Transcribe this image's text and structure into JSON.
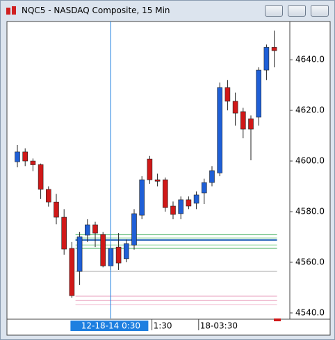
{
  "window_title": "NQC5 - NASDAQ Composite, 15 Min",
  "chart_data": {
    "type": "candlestick",
    "categories": [
      null,
      null,
      null,
      null,
      null,
      null,
      null,
      null,
      null,
      null,
      null,
      null,
      "12-18-14  0:30",
      null,
      null,
      null,
      null,
      null,
      "1:30",
      null,
      null,
      null,
      null,
      null,
      "18-03:30",
      null,
      null,
      null,
      null,
      null,
      null,
      null,
      null,
      null
    ],
    "crosshair_category": 12,
    "series": [
      {
        "up_color": "#1f5fd6",
        "down_color": "#d01818",
        "open": [
          4599.7,
          4603.6,
          4600.0,
          4598.6,
          4588.8,
          4583.8,
          4577.8,
          4565.5,
          4556.4,
          4570.7,
          4574.8,
          4571.0,
          4558.6,
          4566.0,
          4561.4,
          4566.8,
          4578.6,
          4600.8,
          4592.6,
          4592.6,
          4582.2,
          4579.2,
          4584.7,
          4583.3,
          4587.4,
          4591.5,
          4595.3,
          4629.0,
          4623.6,
          4619.5,
          4616.7,
          4617.3,
          4635.9,
          4644.9
        ],
        "high": [
          4606.3,
          4605.0,
          4601.0,
          4599.0,
          4590.0,
          4587.0,
          4581.0,
          4568.0,
          4572.0,
          4577.0,
          4576.0,
          4572.0,
          4567.0,
          4571.5,
          4569.0,
          4581.0,
          4594.0,
          4602.0,
          4595.0,
          4593.5,
          4584.0,
          4586.0,
          4586.0,
          4588.0,
          4593.0,
          4598.0,
          4631.0,
          4632.0,
          4627.0,
          4621.0,
          4618.0,
          4637.0,
          4646.0,
          4651.5
        ],
        "low": [
          4597.5,
          4598.0,
          4596.0,
          4585.0,
          4582.0,
          4575.0,
          4563.0,
          4546.0,
          4551.0,
          4568.0,
          4566.0,
          4558.0,
          4557.0,
          4557.0,
          4560.0,
          4565.0,
          4577.0,
          4591.0,
          4590.0,
          4580.0,
          4577.0,
          4577.0,
          4581.0,
          4581.0,
          4583.0,
          4590.0,
          4594.0,
          4620.0,
          4614.0,
          4609.0,
          4600.3,
          4614.0,
          4632.0,
          4637.0
        ],
        "close": [
          4603.6,
          4600.0,
          4598.5,
          4588.8,
          4583.8,
          4577.8,
          4565.2,
          4546.8,
          4570.1,
          4574.8,
          4571.5,
          4558.6,
          4565.5,
          4559.7,
          4567.4,
          4579.2,
          4592.6,
          4592.6,
          4592.0,
          4581.6,
          4578.9,
          4584.7,
          4582.2,
          4586.6,
          4591.5,
          4596.2,
          4629.0,
          4623.6,
          4618.9,
          4612.6,
          4612.6,
          4635.9,
          4644.9,
          4643.6
        ]
      }
    ],
    "levels": [
      {
        "value": 4571.0,
        "color": "#2fa84a"
      },
      {
        "value": 4569.6,
        "color": "#8fd79b"
      },
      {
        "value": 4568.8,
        "color": "#1e5fb8"
      },
      {
        "value": 4566.8,
        "color": "#8fd79b"
      },
      {
        "value": 4565.5,
        "color": "#2fa84a"
      },
      {
        "value": 4556.4,
        "color": "#b0b0b0"
      },
      {
        "value": 4546.6,
        "color": "#e58fb0"
      },
      {
        "value": 4544.9,
        "color": "#e58fb0"
      },
      {
        "value": 4543.3,
        "color": "#f2bdd0"
      }
    ],
    "ylim": [
      4537.8,
      4655.1
    ],
    "yticks": [
      {
        "value": 4540,
        "label": "4540.0"
      },
      {
        "value": 4560,
        "label": "4560.0"
      },
      {
        "value": 4580,
        "label": "4580.0"
      },
      {
        "value": 4600,
        "label": "4600.0"
      },
      {
        "value": 4620,
        "label": "4620.0"
      },
      {
        "value": 4640,
        "label": "4640.0"
      }
    ]
  }
}
